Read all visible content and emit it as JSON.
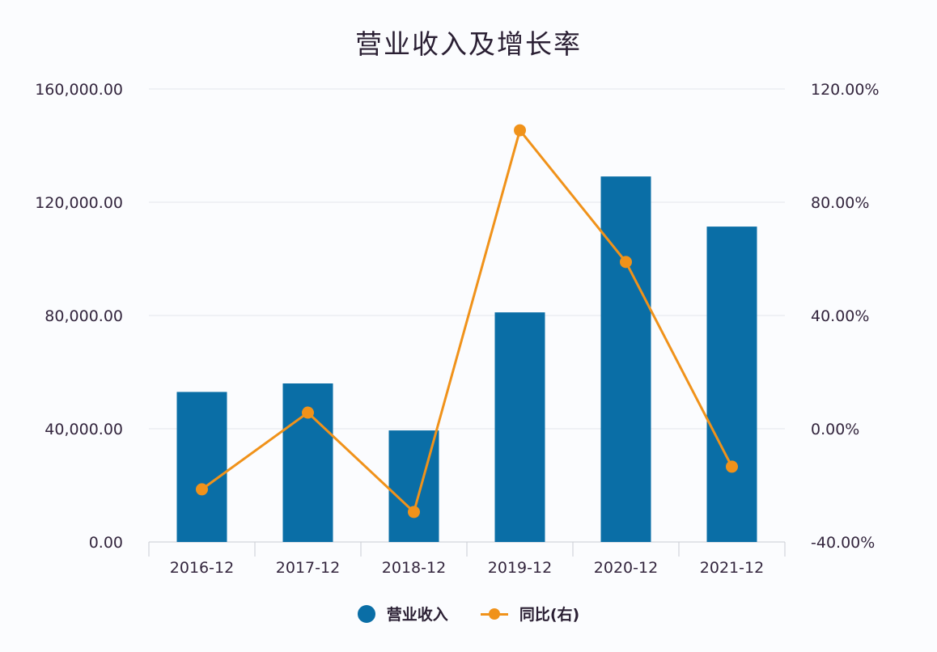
{
  "chart_data": {
    "type": "bar+line",
    "title": "营业收入及增长率",
    "categories": [
      "2016-12",
      "2017-12",
      "2018-12",
      "2019-12",
      "2020-12",
      "2021-12"
    ],
    "series": [
      {
        "name": "营业收入",
        "type": "bar",
        "axis": "left",
        "color": "#0a6ea6",
        "values": [
          53000,
          56000,
          39400,
          81100,
          129100,
          111400
        ]
      },
      {
        "name": "同比(右)",
        "type": "line",
        "axis": "right",
        "color": "#f0921a",
        "values": [
          -21.4,
          5.7,
          -29.4,
          105.4,
          58.9,
          -13.4
        ]
      }
    ],
    "left_axis": {
      "min": 0,
      "max": 160000,
      "ticks": [
        "0.00",
        "40,000.00",
        "80,000.00",
        "120,000.00",
        "160,000.00"
      ]
    },
    "right_axis": {
      "min": -40,
      "max": 120,
      "ticks": [
        "-40.00%",
        "0.00%",
        "40.00%",
        "80.00%",
        "120.00%"
      ]
    },
    "grid": true,
    "legend_position": "bottom"
  },
  "legend": {
    "bar_label": "营业收入",
    "line_label": "同比(右)"
  }
}
